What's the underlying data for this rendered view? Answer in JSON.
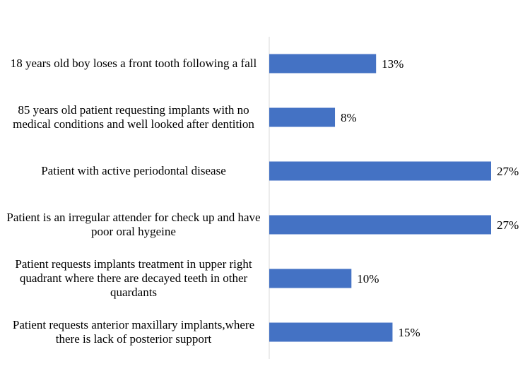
{
  "chart_data": {
    "type": "bar",
    "orientation": "horizontal",
    "categories": [
      "18 years old boy loses a front tooth following a fall",
      "85 years old patient requesting implants with no medical conditions and well looked after dentition",
      "Patient with active periodontal disease",
      "Patient is an irregular attender for check up and have poor oral hygeine",
      "Patient requests implants treatment in upper right quadrant where there are decayed teeth in other quardants",
      "Patient requests anterior maxillary implants,where there is lack of posterior support"
    ],
    "values": [
      13,
      8,
      27,
      27,
      10,
      15
    ],
    "value_labels": [
      "13%",
      "8%",
      "27%",
      "27%",
      "10%",
      "15%"
    ],
    "title": "",
    "xlabel": "",
    "ylabel": "",
    "xlim": [
      0,
      27
    ],
    "grid": false,
    "legend": "none",
    "bar_color": "#4472c4"
  }
}
